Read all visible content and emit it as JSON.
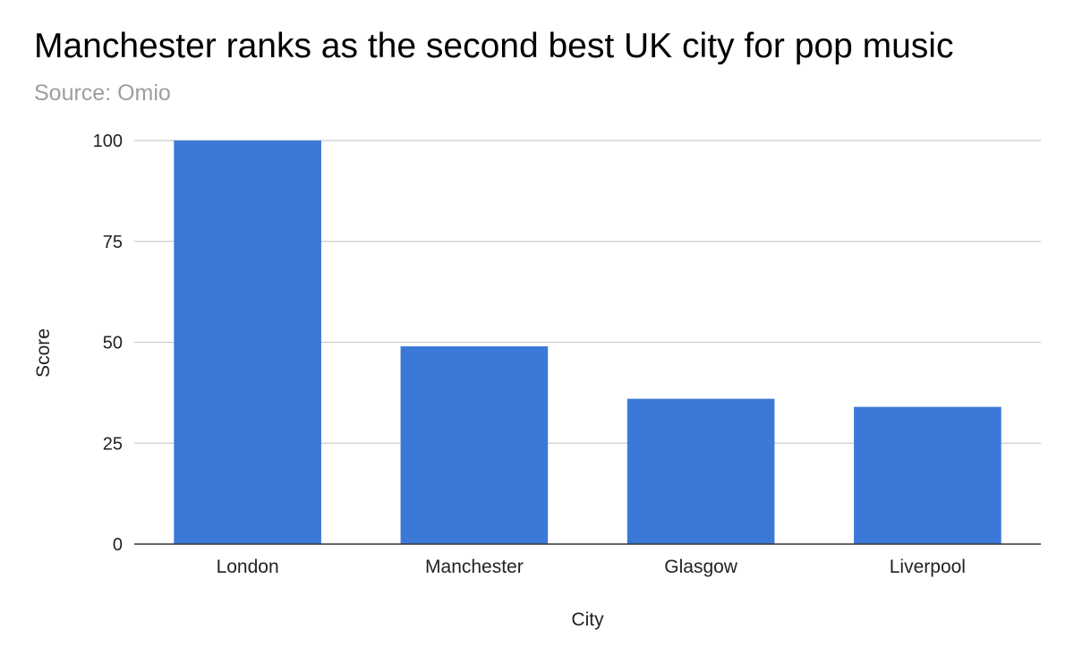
{
  "chart_data": {
    "type": "bar",
    "title": "Manchester ranks as the second best UK city for pop music",
    "subtitle": "Source: Omio",
    "xlabel": "City",
    "ylabel": "Score",
    "categories": [
      "London",
      "Manchester",
      "Glasgow",
      "Liverpool"
    ],
    "values": [
      100,
      49,
      36,
      34
    ],
    "ylim": [
      0,
      100
    ],
    "yticks": [
      0,
      25,
      50,
      75,
      100
    ],
    "grid": true,
    "legend": "none",
    "bar_color": "#3c78d8"
  }
}
